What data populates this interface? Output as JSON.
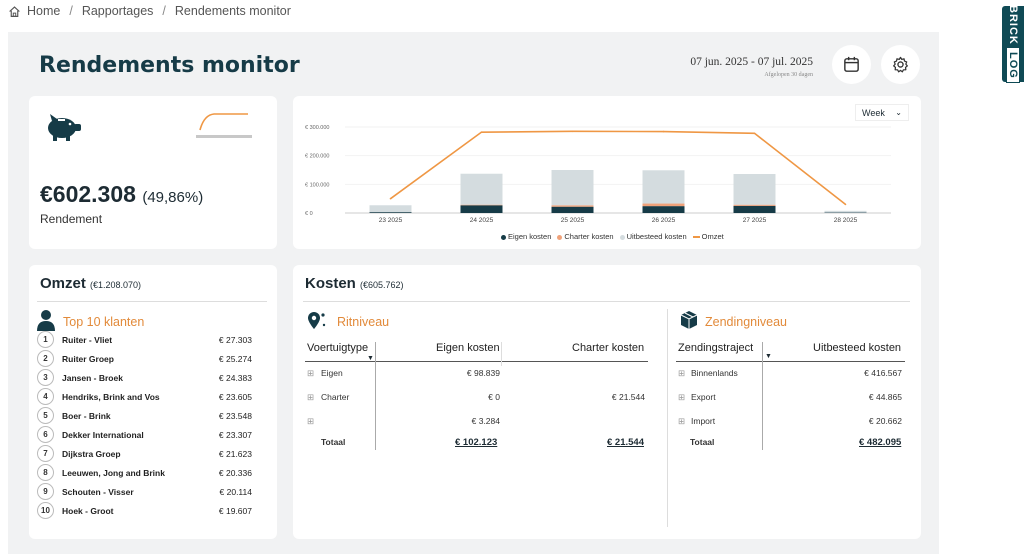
{
  "breadcrumb": {
    "home": "Home",
    "item2": "Rapportages",
    "item3": "Rendements monitor"
  },
  "brick": {
    "brand": "BRICK",
    "suffix": "LOG"
  },
  "header": {
    "title": "Rendements monitor",
    "date_range": "07 jun. 2025 - 07 jul. 2025",
    "date_sub": "Afgelopen 30 dagen"
  },
  "rendement": {
    "value": "€602.308",
    "pct": "(49,86%)",
    "label": "Rendement"
  },
  "chart": {
    "period_select": "Week",
    "legend": [
      "Eigen kosten",
      "Charter kosten",
      "Uitbesteed kosten",
      "Omzet"
    ]
  },
  "chart_data": {
    "type": "bar",
    "categories": [
      "23 2025",
      "24 2025",
      "25 2025",
      "26 2025",
      "27 2025",
      "28 2025"
    ],
    "yticks": [
      "€ 300.000",
      "€ 200.000",
      "€ 100.000",
      "€ 0"
    ],
    "ylim": [
      0,
      300000
    ],
    "series": [
      {
        "name": "Eigen kosten",
        "values": [
          3000,
          27000,
          22000,
          24000,
          25000,
          1500
        ]
      },
      {
        "name": "Charter kosten",
        "values": [
          0,
          2000,
          5000,
          9000,
          4000,
          0
        ]
      },
      {
        "name": "Uitbesteed kosten",
        "values": [
          24000,
          108000,
          123000,
          116000,
          107000,
          6000
        ]
      },
      {
        "name": "Omzet",
        "values": [
          50000,
          282000,
          285000,
          284000,
          278000,
          30000
        ]
      }
    ],
    "colors": {
      "eigen": "#163b47",
      "charter": "#f0a27a",
      "uitbesteed": "#d4dcdf",
      "omzet": "#ef9744"
    }
  },
  "omzet": {
    "title": "Omzet",
    "total": "(€1.208.070)",
    "top_title": "Top 10 klanten",
    "klanten": [
      {
        "n": "1",
        "name": "Ruiter - Vliet",
        "value": "€ 27.303"
      },
      {
        "n": "2",
        "name": "Ruiter Groep",
        "value": "€ 25.274"
      },
      {
        "n": "3",
        "name": "Jansen - Broek",
        "value": "€ 24.383"
      },
      {
        "n": "4",
        "name": "Hendriks, Brink and Vos",
        "value": "€ 23.605"
      },
      {
        "n": "5",
        "name": "Boer - Brink",
        "value": "€ 23.548"
      },
      {
        "n": "6",
        "name": "Dekker International",
        "value": "€ 23.307"
      },
      {
        "n": "7",
        "name": "Dijkstra Groep",
        "value": "€ 21.623"
      },
      {
        "n": "8",
        "name": "Leeuwen, Jong and Brink",
        "value": "€ 20.336"
      },
      {
        "n": "9",
        "name": "Schouten - Visser",
        "value": "€ 20.114"
      },
      {
        "n": "10",
        "name": "Hoek - Groot",
        "value": "€ 19.607"
      }
    ]
  },
  "kosten": {
    "title": "Kosten",
    "total": "(€605.762)",
    "rit": {
      "title": "Ritniveau",
      "headers": [
        "Voertuigtype",
        "Eigen kosten",
        "Charter kosten"
      ],
      "rows": [
        {
          "type": "Eigen",
          "eigen": "€ 98.839",
          "charter": ""
        },
        {
          "type": "Charter",
          "eigen": "€ 0",
          "charter": "€ 21.544"
        },
        {
          "type": "",
          "eigen": "€ 3.284",
          "charter": ""
        }
      ],
      "total_label": "Totaal",
      "total_eigen": "€ 102.123",
      "total_charter": "€ 21.544"
    },
    "zending": {
      "title": "Zendingniveau",
      "headers": [
        "Zendingstraject",
        "Uitbesteed kosten"
      ],
      "rows": [
        {
          "type": "Binnenlands",
          "value": "€ 416.567"
        },
        {
          "type": "Export",
          "value": "€ 44.865"
        },
        {
          "type": "Import",
          "value": "€ 20.662"
        }
      ],
      "total_label": "Totaal",
      "total_value": "€ 482.095"
    }
  }
}
